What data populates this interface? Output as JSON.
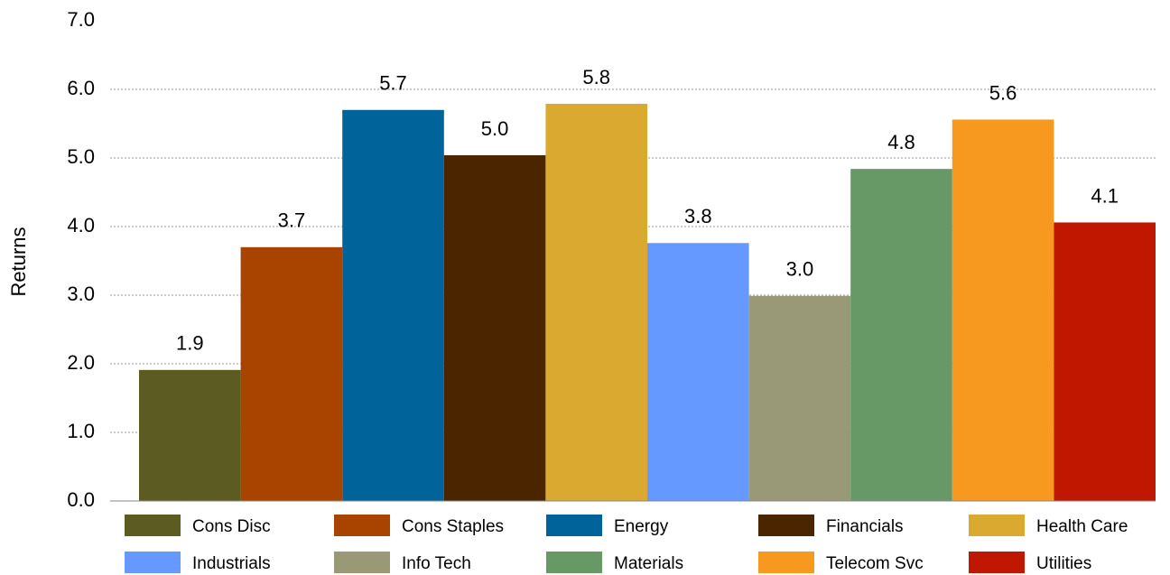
{
  "chart_data": {
    "type": "bar",
    "y_label": "Returns",
    "ylim": [
      0,
      7
    ],
    "yticks": [
      {
        "value": 0,
        "label": "0.0"
      },
      {
        "value": 1,
        "label": "1.0"
      },
      {
        "value": 2,
        "label": "2.0"
      },
      {
        "value": 3,
        "label": "3.0"
      },
      {
        "value": 4,
        "label": "4.0"
      },
      {
        "value": 5,
        "label": "5.0"
      },
      {
        "value": 6,
        "label": "6.0"
      },
      {
        "value": 7,
        "label": "7.0"
      }
    ],
    "grid": true,
    "legend": "bottom",
    "series": [
      {
        "name": "Cons Disc",
        "color": "#5c5c22",
        "values": [
          1.91
        ],
        "value_labels": [
          "1.9"
        ]
      },
      {
        "name": "Cons Staples",
        "color": "#a84400",
        "values": [
          3.7
        ],
        "value_labels": [
          "3.7"
        ]
      },
      {
        "name": "Energy",
        "color": "#00649a",
        "values": [
          5.7
        ],
        "value_labels": [
          "5.7"
        ]
      },
      {
        "name": "Financials",
        "color": "#4b2500",
        "values": [
          5.04
        ],
        "value_labels": [
          "5.0"
        ]
      },
      {
        "name": "Health Care",
        "color": "#d9aa2f",
        "values": [
          5.79
        ],
        "value_labels": [
          "5.8"
        ]
      },
      {
        "name": "Industrials",
        "color": "#6699ff",
        "values": [
          3.76
        ],
        "value_labels": [
          "3.8"
        ]
      },
      {
        "name": "Info Tech",
        "color": "#999977",
        "values": [
          2.99
        ],
        "value_labels": [
          "3.0"
        ]
      },
      {
        "name": "Materials",
        "color": "#669966",
        "values": [
          4.84
        ],
        "value_labels": [
          "4.8"
        ]
      },
      {
        "name": "Telecom Svc",
        "color": "#f7991f",
        "values": [
          5.56
        ],
        "value_labels": [
          "5.6"
        ]
      },
      {
        "name": "Utilities",
        "color": "#c01800",
        "values": [
          4.06
        ],
        "value_labels": [
          "4.1"
        ]
      }
    ]
  }
}
